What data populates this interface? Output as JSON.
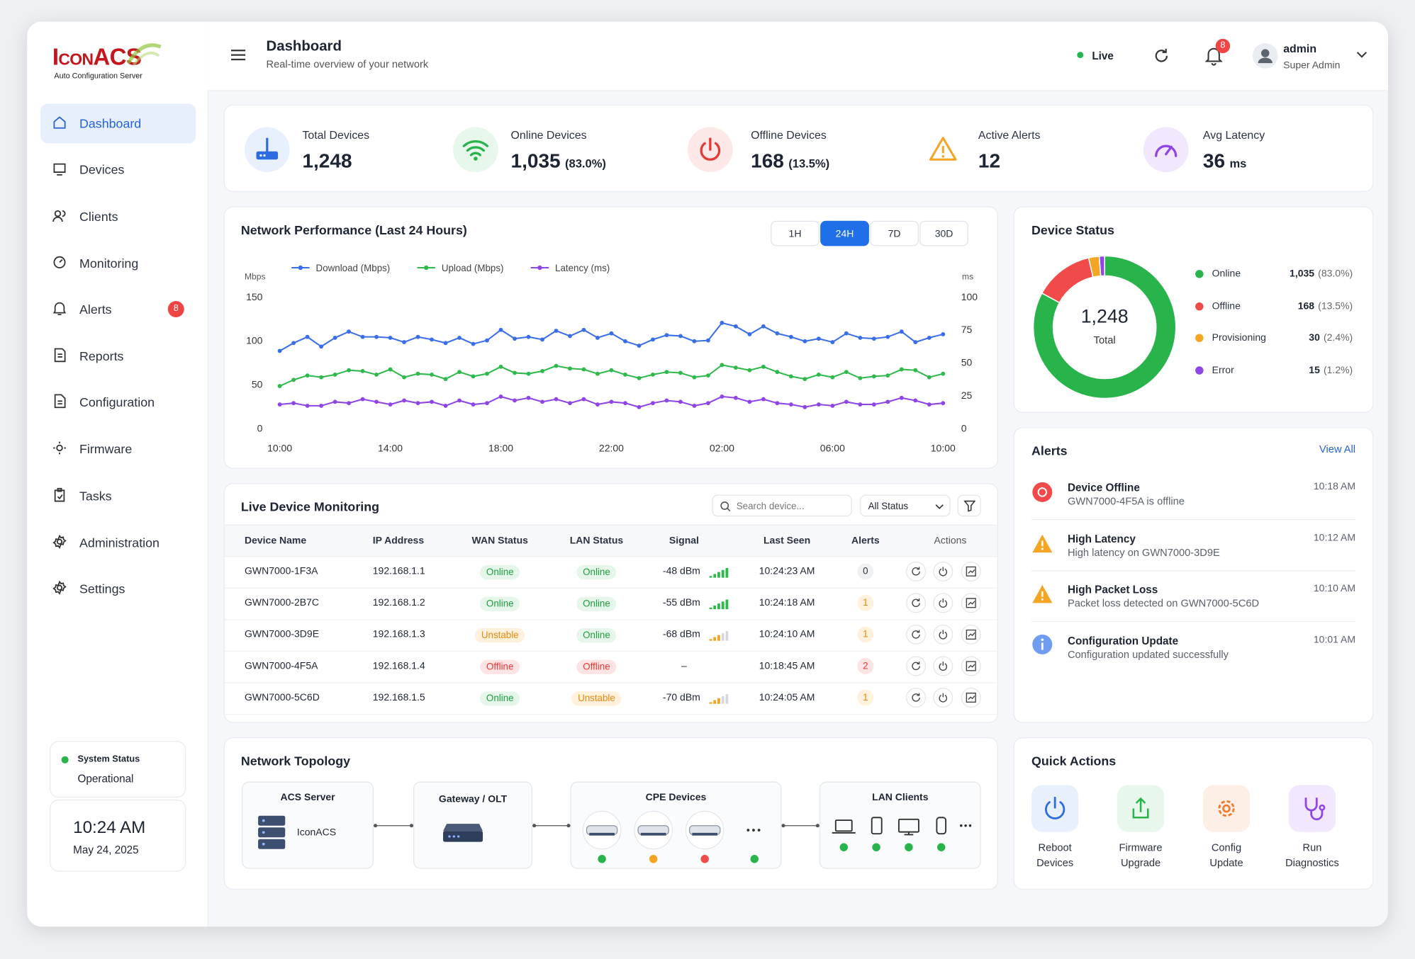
{
  "sidebar": {
    "logo": "IconACS",
    "logo_subtitle": "Auto Configuration Server",
    "nav": [
      "Dashboard",
      "Devices",
      "Clients",
      "Monitoring",
      "Alerts",
      "Reports",
      "Configuration",
      "Firmware",
      "Tasks",
      "Administration",
      "Settings"
    ],
    "nav_badge": "8",
    "system_status": {
      "label": "System Status",
      "value": "Operational"
    },
    "clock": {
      "time": "10:24 AM",
      "date": "May 24, 2025"
    }
  },
  "header": {
    "title": "Dashboard",
    "subtitle": "Real-time overview of your network",
    "live": "Live",
    "notifications": "8",
    "user": "admin",
    "role": "Super Admin"
  },
  "stats": [
    {
      "label": "Total Devices",
      "value": "1,248"
    },
    {
      "label": "Online Devices",
      "value": "1,035",
      "note": "(83.0%)"
    },
    {
      "label": "Offline Devices",
      "value": "168",
      "note": "(13.5%)"
    },
    {
      "label": "Active Alerts",
      "value": "12"
    },
    {
      "label": "Avg Latency",
      "value": "36",
      "note": "ms"
    }
  ],
  "chart_data": [
    {
      "type": "line",
      "title": "Network Performance (Last 24 Hours)",
      "ranges": [
        "1H",
        "24H",
        "7D",
        "30D"
      ],
      "active_range": "24H",
      "y_label": "Mbps",
      "y2_label": "ms",
      "categories": [
        "10:00",
        null,
        null,
        null,
        null,
        null,
        null,
        null,
        "14:00",
        null,
        null,
        null,
        null,
        null,
        null,
        null,
        "18:00",
        null,
        null,
        null,
        null,
        null,
        null,
        null,
        "22:00",
        null,
        null,
        null,
        null,
        null,
        null,
        null,
        "02:00",
        null,
        null,
        null,
        null,
        null,
        null,
        null,
        "06:00",
        null,
        null,
        null,
        null,
        null,
        null,
        null,
        "10:00"
      ],
      "series": [
        {
          "name": "Download (Mbps)",
          "color": "#3a6ee8",
          "values": [
            88,
            97,
            104,
            93,
            103,
            110,
            104,
            104,
            103,
            98,
            104,
            101,
            97,
            103,
            96,
            100,
            112,
            102,
            104,
            101,
            111,
            105,
            112,
            103,
            108,
            99,
            94,
            101,
            106,
            105,
            99,
            100,
            120,
            116,
            107,
            116,
            108,
            104,
            99,
            102,
            98,
            108,
            103,
            102,
            104,
            110,
            98,
            103,
            107
          ]
        },
        {
          "name": "Upload (Mbps)",
          "color": "#2fb84c",
          "values": [
            48,
            55,
            60,
            58,
            61,
            66,
            65,
            61,
            67,
            58,
            62,
            61,
            56,
            64,
            59,
            62,
            70,
            63,
            62,
            65,
            71,
            68,
            67,
            62,
            66,
            61,
            57,
            61,
            64,
            63,
            58,
            60,
            72,
            69,
            66,
            70,
            64,
            59,
            56,
            61,
            58,
            64,
            57,
            59,
            60,
            67,
            66,
            58,
            62
          ]
        },
        {
          "name": "Latency (ms)",
          "color": "#8f45e6",
          "axis": "y2",
          "values": [
            18,
            19,
            17,
            17,
            20,
            19,
            22,
            20,
            18,
            21,
            19,
            20,
            17,
            21,
            18,
            19,
            24,
            21,
            23,
            20,
            22,
            19,
            22,
            18,
            20,
            19,
            16,
            19,
            21,
            20,
            17,
            19,
            24,
            23,
            20,
            22,
            19,
            18,
            16,
            18,
            17,
            20,
            18,
            18,
            20,
            23,
            21,
            18,
            19
          ]
        }
      ],
      "ylim": [
        0,
        150
      ],
      "yticks": [
        0,
        50,
        100,
        150
      ],
      "y2lim": [
        0,
        100
      ],
      "y2ticks": [
        0,
        25,
        50,
        75,
        100
      ],
      "grid": false
    },
    {
      "type": "pie",
      "title": "Device Status",
      "center_value": "1,248",
      "center_label": "Total",
      "categories": [
        "Online",
        "Offline",
        "Provisioning",
        "Error"
      ],
      "values": [
        1035,
        168,
        30,
        15
      ],
      "value_labels": [
        "1,035",
        "168",
        "30",
        "15"
      ],
      "shares": [
        "(83.0%)",
        "(13.5%)",
        "(2.4%)",
        "(1.2%)"
      ],
      "colors": [
        "#28b44b",
        "#f04a4a",
        "#f5a524",
        "#8e46e6"
      ]
    }
  ],
  "device_table": {
    "title": "Live Device Monitoring",
    "search_placeholder": "Search device...",
    "filter": "All Status",
    "columns": [
      "Device Name",
      "IP Address",
      "WAN Status",
      "LAN Status",
      "Signal",
      "Last Seen",
      "Alerts",
      "Actions"
    ],
    "rows": [
      [
        "GWN7000-1F3A",
        "192.168.1.1",
        "Online",
        "Online",
        "-48 dBm",
        "10:24:23 AM",
        "0"
      ],
      [
        "GWN7000-2B7C",
        "192.168.1.2",
        "Online",
        "Online",
        "-55 dBm",
        "10:24:18 AM",
        "1"
      ],
      [
        "GWN7000-3D9E",
        "192.168.1.3",
        "Unstable",
        "Online",
        "-68 dBm",
        "10:24:10 AM",
        "1"
      ],
      [
        "GWN7000-4F5A",
        "192.168.1.4",
        "Offline",
        "Offline",
        "–",
        "10:18:45 AM",
        "2"
      ],
      [
        "GWN7000-5C6D",
        "192.168.1.5",
        "Online",
        "Unstable",
        "-70 dBm",
        "10:24:05 AM",
        "1"
      ]
    ]
  },
  "alerts": {
    "title": "Alerts",
    "view_all": "View All",
    "items": [
      {
        "title": "Device Offline",
        "text": "GWN7000-4F5A is offline",
        "time": "10:18 AM"
      },
      {
        "title": "High Latency",
        "text": "High latency on GWN7000-3D9E",
        "time": "10:12 AM"
      },
      {
        "title": "High Packet Loss",
        "text": "Packet loss detected on GWN7000-5C6D",
        "time": "10:10 AM"
      },
      {
        "title": "Configuration Update",
        "text": "Configuration updated successfully",
        "time": "10:01 AM"
      }
    ]
  },
  "topology": {
    "title": "Network Topology",
    "nodes": [
      {
        "label": "ACS Server",
        "name": "IconACS"
      },
      {
        "label": "Gateway / OLT"
      },
      {
        "label": "CPE Devices"
      },
      {
        "label": "LAN Clients"
      }
    ]
  },
  "quick_actions": {
    "title": "Quick Actions",
    "items": [
      "Reboot Devices",
      "Firmware Upgrade",
      "Config Update",
      "Run Diagnostics"
    ]
  }
}
